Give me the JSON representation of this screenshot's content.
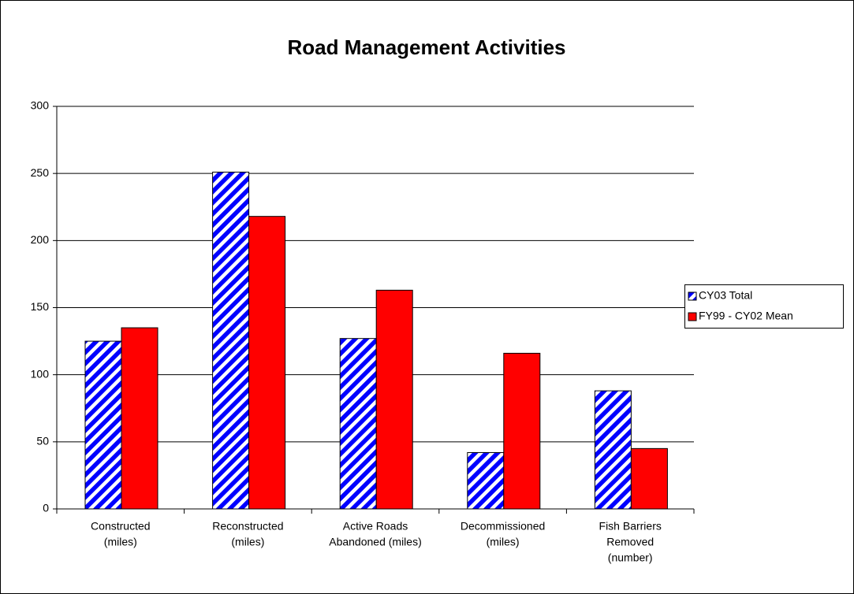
{
  "chart_data": {
    "type": "bar",
    "title": "Road Management Activities",
    "categories": [
      [
        "Constructed",
        "(miles)"
      ],
      [
        "Reconstructed",
        "(miles)"
      ],
      [
        "Active Roads",
        "Abandoned (miles)"
      ],
      [
        "Decommissioned",
        "(miles)"
      ],
      [
        "Fish Barriers",
        "Removed",
        "(number)"
      ]
    ],
    "series": [
      {
        "name": "CY03 Total",
        "color": "#0000ff",
        "hatch": true,
        "values": [
          125,
          251,
          127,
          42,
          88
        ]
      },
      {
        "name": "FY99 - CY02 Mean",
        "color": "#ff0000",
        "hatch": false,
        "values": [
          135,
          218,
          163,
          116,
          45
        ]
      }
    ],
    "ylim": [
      0,
      300
    ],
    "yticks": [
      0,
      50,
      100,
      150,
      200,
      250,
      300
    ],
    "grid": true,
    "legend": "right"
  }
}
